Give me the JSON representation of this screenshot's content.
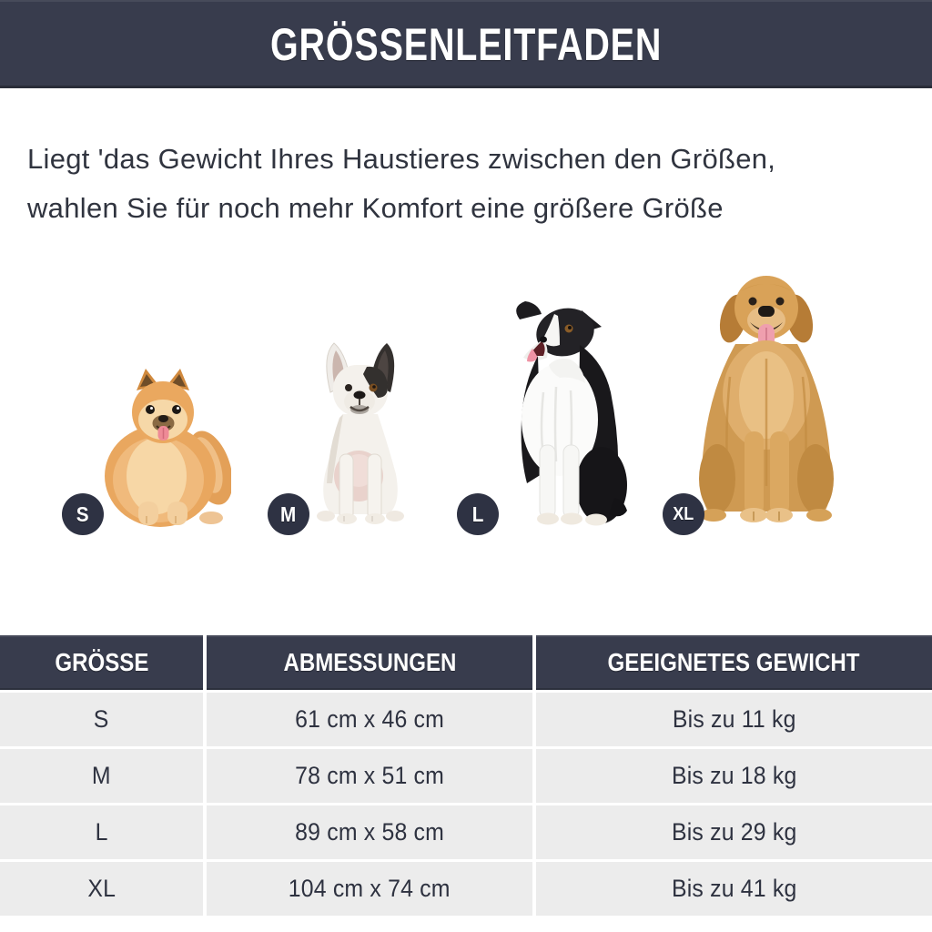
{
  "header": {
    "title": "GRÖSSENLEITFADEN"
  },
  "intro": {
    "line1": "Liegt 'das Gewicht Ihres Haustieres zwischen den Größen,",
    "line2": "wahlen Sie für noch mehr Komfort eine größere Größe"
  },
  "dogs": [
    {
      "name": "pomeranian-illustration",
      "badge": "S"
    },
    {
      "name": "french-bulldog-illustration",
      "badge": "M"
    },
    {
      "name": "border-collie-illustration",
      "badge": "L"
    },
    {
      "name": "golden-retriever-illustration",
      "badge": "XL"
    }
  ],
  "table": {
    "columns": [
      "GRÖSSE",
      "ABMESSUNGEN",
      "GEEIGNETES GEWICHT"
    ],
    "rows": [
      [
        "S",
        "61 cm x 46 cm",
        "Bis zu 11 kg"
      ],
      [
        "M",
        "78 cm x 51 cm",
        "Bis zu 18 kg"
      ],
      [
        "L",
        "89 cm x 58 cm",
        "Bis zu 29 kg"
      ],
      [
        "XL",
        "104 cm x 74 cm",
        "Bis zu 41 kg"
      ]
    ]
  },
  "colors": {
    "navy": "#383c4d",
    "badge_navy": "#2e3243",
    "row_gray": "#ececec",
    "text": "#2e3240"
  }
}
